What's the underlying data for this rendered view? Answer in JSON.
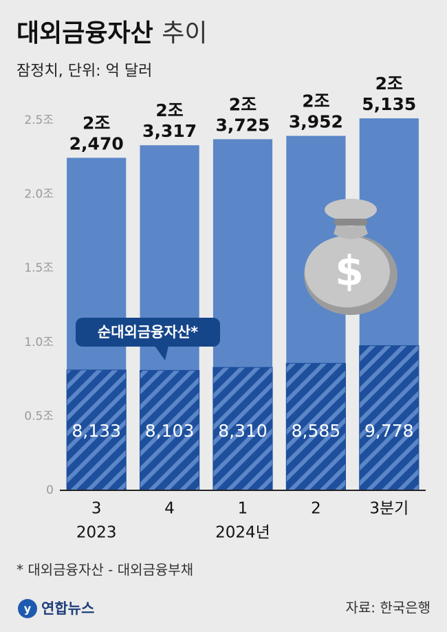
{
  "chart_data": {
    "type": "bar",
    "title": "대외금융자산",
    "title_suffix": "추이",
    "subtitle": "잠정치, 단위: 억 달러",
    "categories": [
      "3",
      "4",
      "1",
      "2",
      "3분기"
    ],
    "years": [
      "2023",
      null,
      "2024년",
      null,
      null
    ],
    "series": [
      {
        "color": "#5b86c8",
        "values": [
          2.247,
          2.3317,
          2.3725,
          2.3952,
          2.5135
        ],
        "value_labels": [
          "2조\n2,470",
          "2조\n3,317",
          "2조\n3,725",
          "2조\n3,952",
          "2조\n5,135"
        ]
      },
      {
        "name": "순대외금융자산*",
        "color": "#1d4f9c",
        "values": [
          0.8133,
          0.8103,
          0.831,
          0.8585,
          0.9778
        ],
        "value_labels": [
          "8,133",
          "8,103",
          "8,310",
          "8,585",
          "9,778"
        ]
      }
    ],
    "ylim": [
      0,
      2.5
    ],
    "yticks": [
      0,
      {
        "value": 0.5,
        "label": "0.5조"
      },
      {
        "value": 1.0,
        "label": "1.0조"
      },
      {
        "value": 1.5,
        "label": "1.5조"
      },
      {
        "value": 2.0,
        "label": "2.0조"
      },
      {
        "value": 2.5,
        "label": "2.5조"
      }
    ],
    "grid": false,
    "footnote": "* 대외금융자산 - 대외금융부채",
    "source": "자료: 한국은행",
    "logo": "연합뉴스"
  }
}
